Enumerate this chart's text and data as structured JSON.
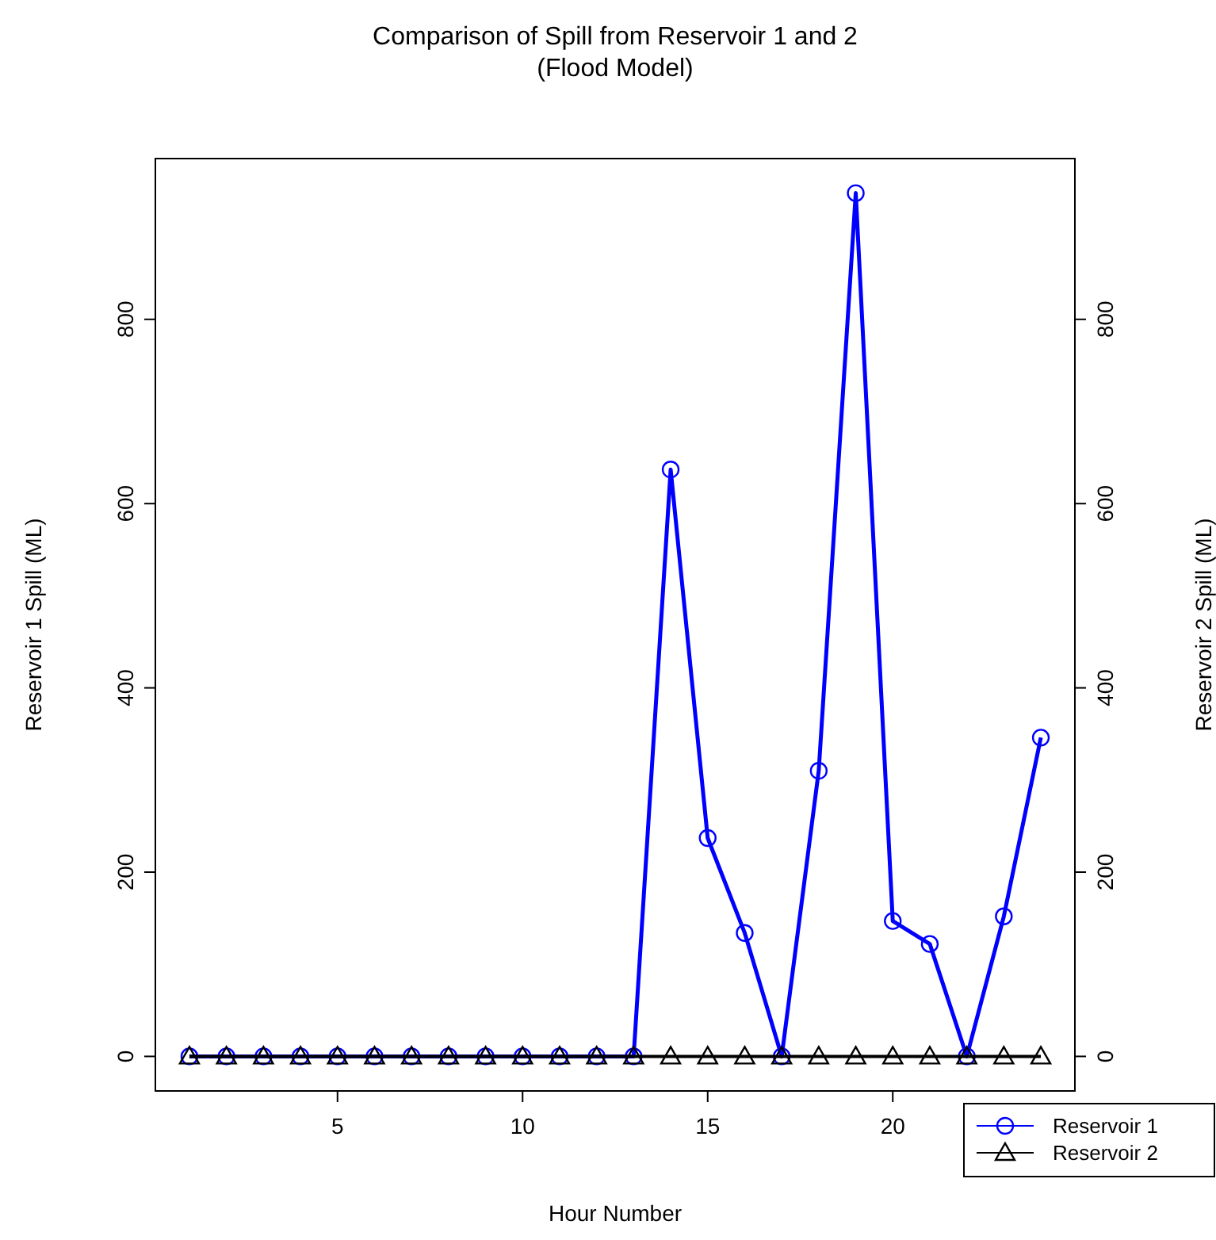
{
  "chart_data": {
    "type": "line",
    "title": "Comparison of Spill from Reservoir 1 and 2\n(Flood Model)",
    "xlabel": "Hour Number",
    "ylabel": "Reservoir 1 Spill (ML)",
    "y2label": "Reservoir 2 Spill (ML)",
    "x": [
      1,
      2,
      3,
      4,
      5,
      6,
      7,
      8,
      9,
      10,
      11,
      12,
      13,
      14,
      15,
      16,
      17,
      18,
      19,
      20,
      21,
      22,
      23,
      24
    ],
    "series": [
      {
        "name": "Reservoir 1",
        "color": "#0000ff",
        "marker": "circle",
        "values": [
          0,
          0,
          0,
          0,
          0,
          0,
          0,
          0,
          0,
          0,
          0,
          0,
          0,
          637,
          237,
          134,
          0,
          310,
          937,
          147,
          122,
          0,
          152,
          346
        ]
      },
      {
        "name": "Reservoir 2",
        "color": "#000000",
        "marker": "triangle",
        "axis": "y2",
        "values": [
          0,
          0,
          0,
          0,
          0,
          0,
          0,
          0,
          0,
          0,
          0,
          0,
          0,
          0,
          0,
          0,
          0,
          0,
          0,
          0,
          0,
          0,
          0,
          0
        ]
      }
    ],
    "xlim": [
      0.08,
      24.92
    ],
    "xticks": [
      5,
      10,
      15,
      20
    ],
    "ylim": [
      -37.5,
      974.5
    ],
    "yticks": [
      0,
      200,
      400,
      600,
      800
    ],
    "y2lim": [
      -37.5,
      974.5
    ],
    "y2ticks": [
      0,
      200,
      400,
      600,
      800
    ],
    "legend": "bottom right",
    "grid": false,
    "line_style": "solid"
  }
}
